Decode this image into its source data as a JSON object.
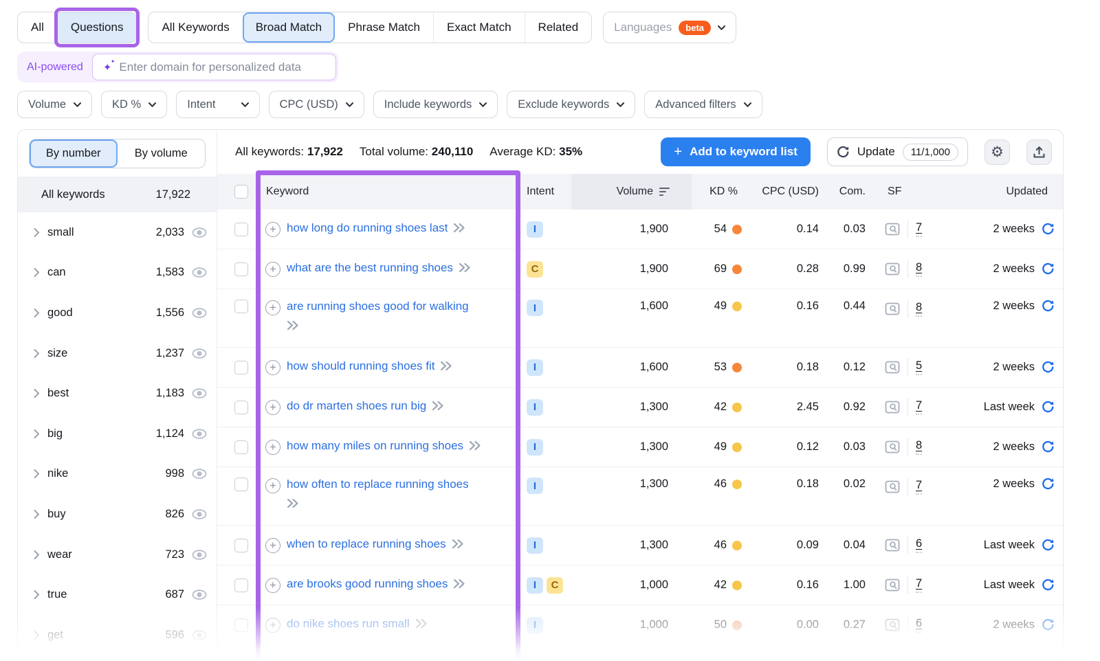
{
  "colors": {
    "accent_blue": "#2B80EF",
    "link_blue": "#2B6FE0",
    "annotation_purple": "#A864E8",
    "beta_orange": "#F75E1E",
    "kd_orange": "#F5873B",
    "kd_yellow": "#F6C54A",
    "ai_purple": "#8A4BF0",
    "selected_tab_bg": "#E2EDFB"
  },
  "top_tabs": {
    "group1": [
      "All",
      "Questions"
    ],
    "group2": [
      "All Keywords",
      "Broad Match",
      "Phrase Match",
      "Exact Match",
      "Related"
    ],
    "languages": {
      "label": "Languages",
      "badge": "beta"
    }
  },
  "ai_bar": {
    "badge": "AI-powered",
    "placeholder": "Enter domain for personalized data"
  },
  "filters": [
    "Volume",
    "KD %",
    "Intent",
    "CPC (USD)",
    "Include keywords",
    "Exclude keywords",
    "Advanced filters"
  ],
  "toolbar": {
    "stats": [
      {
        "label": "All keywords:",
        "value": "17,922"
      },
      {
        "label": "Total volume:",
        "value": "240,110"
      },
      {
        "label": "Average KD:",
        "value": "35%"
      }
    ],
    "add_button": "Add to keyword list",
    "update_button": "Update",
    "update_quota": "11/1,000"
  },
  "sidebar": {
    "toggle": [
      "By number",
      "By volume"
    ],
    "all_keywords": {
      "label": "All keywords",
      "value": "17,922"
    },
    "items": [
      {
        "label": "small",
        "value": "2,033"
      },
      {
        "label": "can",
        "value": "1,583"
      },
      {
        "label": "good",
        "value": "1,556"
      },
      {
        "label": "size",
        "value": "1,237"
      },
      {
        "label": "best",
        "value": "1,183"
      },
      {
        "label": "big",
        "value": "1,124"
      },
      {
        "label": "nike",
        "value": "998"
      },
      {
        "label": "buy",
        "value": "826"
      },
      {
        "label": "wear",
        "value": "723"
      },
      {
        "label": "true",
        "value": "687"
      },
      {
        "label": "get",
        "value": "596",
        "faded": true
      }
    ]
  },
  "table": {
    "headers": {
      "keyword": "Keyword",
      "intent": "Intent",
      "volume": "Volume",
      "kd": "KD %",
      "cpc": "CPC (USD)",
      "com": "Com.",
      "sf": "SF",
      "updated": "Updated"
    },
    "rows": [
      {
        "keyword": "how long do running shoes last",
        "intents": [
          "I"
        ],
        "volume": "1,900",
        "kd": "54",
        "kd_color": "orange",
        "cpc": "0.14",
        "com": "0.03",
        "sf": "7",
        "updated": "2 weeks"
      },
      {
        "keyword": "what are the best running shoes",
        "intents": [
          "C"
        ],
        "volume": "1,900",
        "kd": "69",
        "kd_color": "orange",
        "cpc": "0.28",
        "com": "0.99",
        "sf": "8",
        "updated": "2 weeks"
      },
      {
        "keyword": "are running shoes good for walking",
        "intents": [
          "I"
        ],
        "volume": "1,600",
        "kd": "49",
        "kd_color": "yellow",
        "cpc": "0.16",
        "com": "0.44",
        "sf": "8",
        "updated": "2 weeks",
        "wrap": true
      },
      {
        "keyword": "how should running shoes fit",
        "intents": [
          "I"
        ],
        "volume": "1,600",
        "kd": "53",
        "kd_color": "orange",
        "cpc": "0.18",
        "com": "0.12",
        "sf": "5",
        "updated": "2 weeks"
      },
      {
        "keyword": "do dr marten shoes run big",
        "intents": [
          "I"
        ],
        "volume": "1,300",
        "kd": "42",
        "kd_color": "yellow",
        "cpc": "2.45",
        "com": "0.92",
        "sf": "7",
        "updated": "Last week"
      },
      {
        "keyword": "how many miles on running shoes",
        "intents": [
          "I"
        ],
        "volume": "1,300",
        "kd": "49",
        "kd_color": "yellow",
        "cpc": "0.12",
        "com": "0.03",
        "sf": "8",
        "updated": "2 weeks"
      },
      {
        "keyword": "how often to replace running shoes",
        "intents": [
          "I"
        ],
        "volume": "1,300",
        "kd": "46",
        "kd_color": "yellow",
        "cpc": "0.18",
        "com": "0.02",
        "sf": "7",
        "updated": "2 weeks",
        "wrap": true
      },
      {
        "keyword": "when to replace running shoes",
        "intents": [
          "I"
        ],
        "volume": "1,300",
        "kd": "46",
        "kd_color": "yellow",
        "cpc": "0.09",
        "com": "0.04",
        "sf": "6",
        "updated": "Last week"
      },
      {
        "keyword": "are brooks good running shoes",
        "intents": [
          "I",
          "C"
        ],
        "volume": "1,000",
        "kd": "42",
        "kd_color": "yellow",
        "cpc": "0.16",
        "com": "1.00",
        "sf": "7",
        "updated": "Last week"
      },
      {
        "keyword": "do nike shoes run small",
        "intents": [
          "I"
        ],
        "volume": "1,000",
        "kd": "50",
        "kd_color": "orange-faded",
        "cpc": "0.00",
        "com": "0.27",
        "sf": "6",
        "updated": "2 weeks",
        "faded": true
      }
    ]
  }
}
